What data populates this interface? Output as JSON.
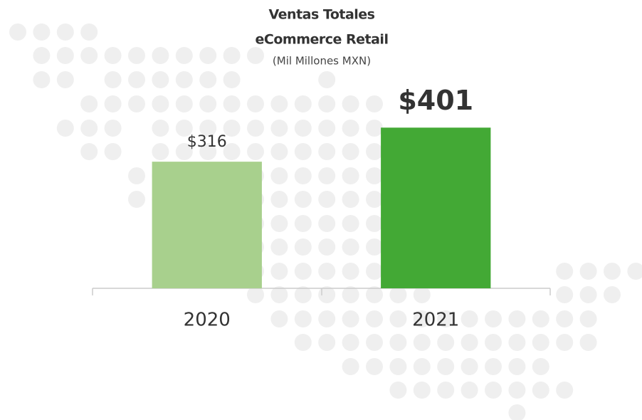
{
  "chart_data": {
    "type": "bar",
    "title": [
      "Ventas Totales",
      "eCommerce Retail"
    ],
    "subtitle": "(Mil Millones MXN)",
    "categories": [
      "2020",
      "2021"
    ],
    "values": [
      316,
      401
    ],
    "value_labels": [
      "$316",
      "$401"
    ],
    "colors": [
      "#a8d08d",
      "#43a935"
    ],
    "ylim": [
      0,
      700
    ]
  }
}
